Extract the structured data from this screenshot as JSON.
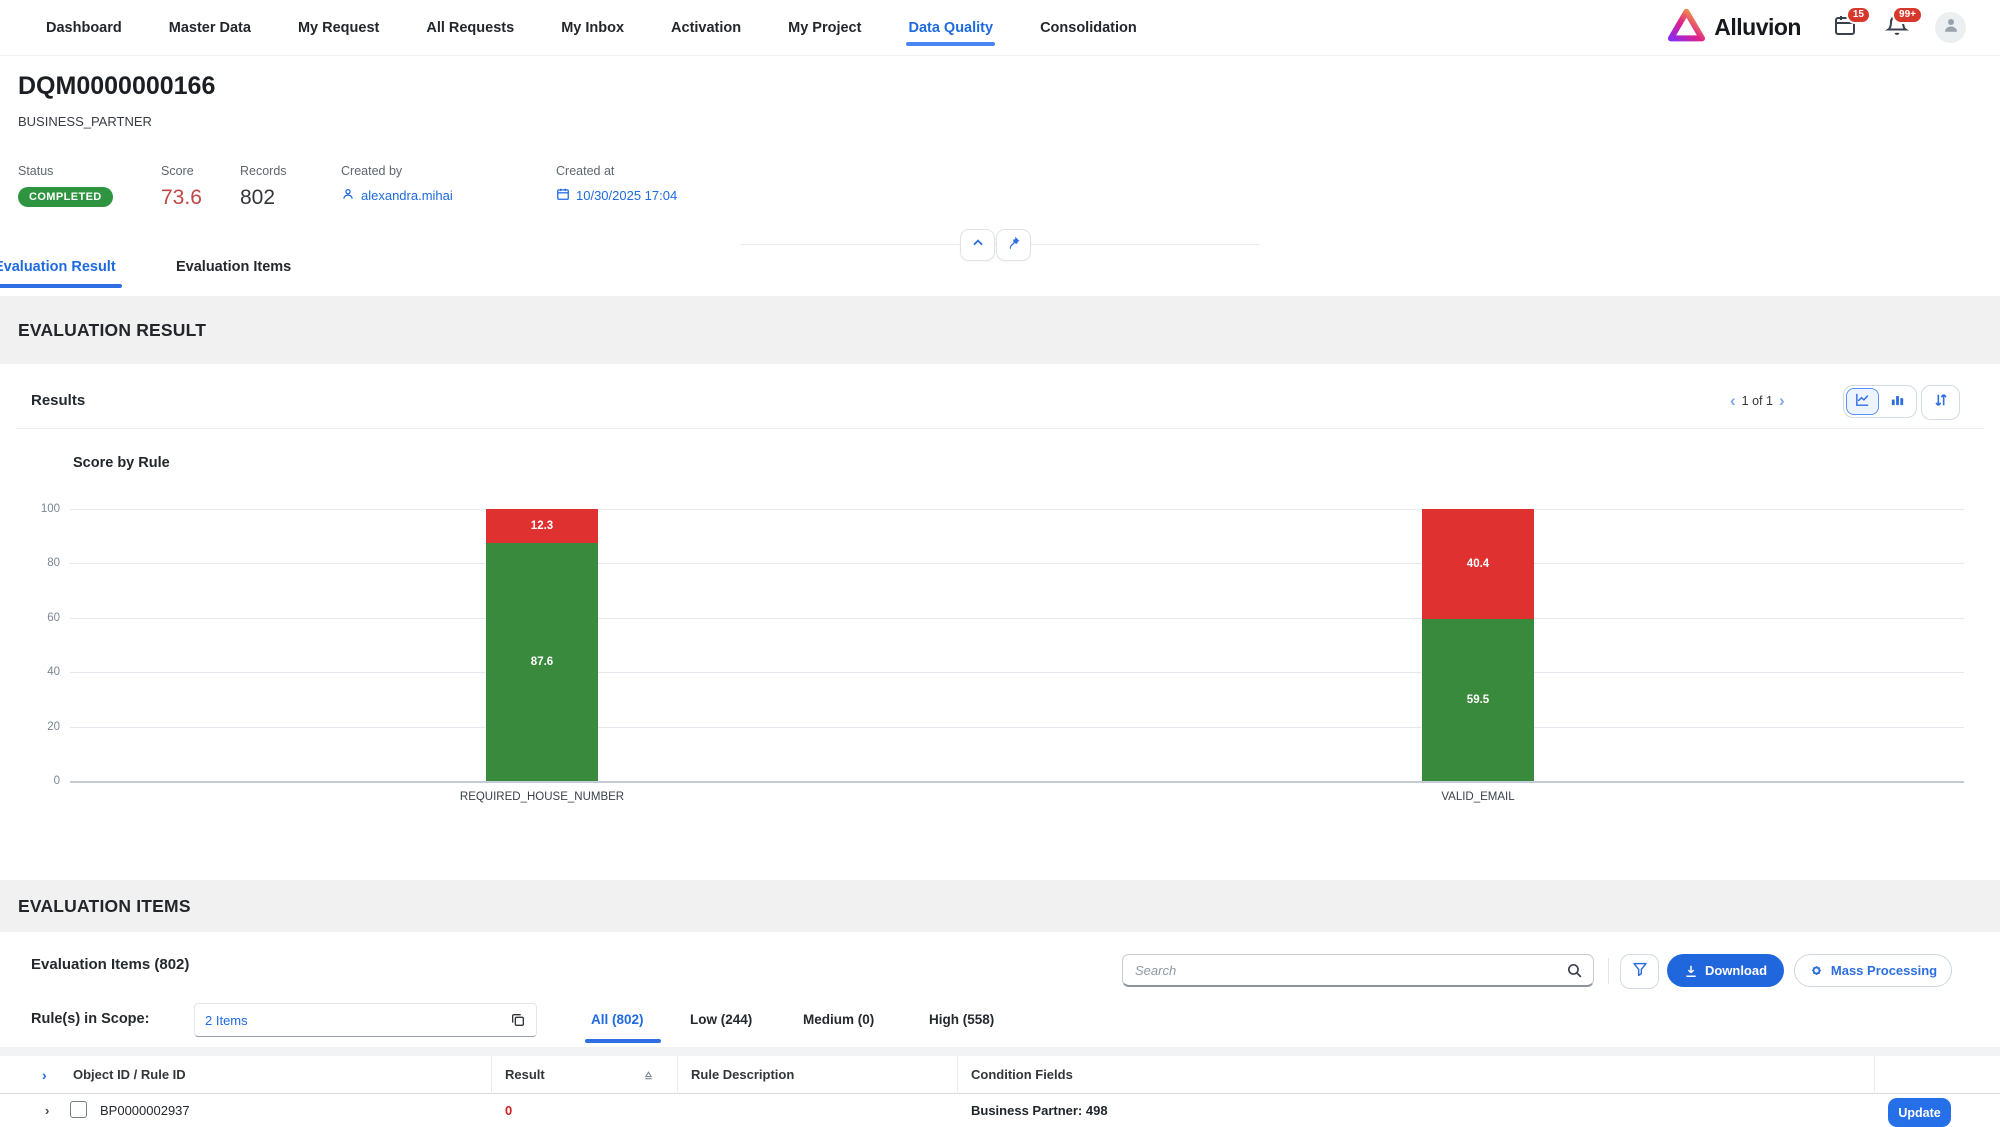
{
  "nav": {
    "items": [
      {
        "label": "Dashboard",
        "active": false
      },
      {
        "label": "Master Data",
        "active": false
      },
      {
        "label": "My Request",
        "active": false
      },
      {
        "label": "All Requests",
        "active": false
      },
      {
        "label": "My Inbox",
        "active": false
      },
      {
        "label": "Activation",
        "active": false
      },
      {
        "label": "My Project",
        "active": false
      },
      {
        "label": "Data Quality",
        "active": true
      },
      {
        "label": "Consolidation",
        "active": false
      }
    ],
    "logo_text": "Alluvion",
    "badges": {
      "calendar": "15",
      "bell": "99+"
    }
  },
  "header": {
    "title": "DQM0000000166",
    "subtitle": "BUSINESS_PARTNER",
    "facets": {
      "status": {
        "label": "Status",
        "value": "COMPLETED"
      },
      "score": {
        "label": "Score",
        "value": "73.6"
      },
      "records": {
        "label": "Records",
        "value": "802"
      },
      "created_by": {
        "label": "Created by",
        "value": "alexandra.mihai"
      },
      "created_at": {
        "label": "Created at",
        "value": "10/30/2025 17:04"
      }
    }
  },
  "tabs": [
    {
      "label": "Evaluation Result",
      "active": true
    },
    {
      "label": "Evaluation Items",
      "active": false
    }
  ],
  "sections": {
    "result_title": "EVALUATION RESULT",
    "items_title": "EVALUATION ITEMS"
  },
  "results_panel": {
    "title": "Results",
    "pagination": "1 of 1"
  },
  "chart_data": {
    "type": "bar",
    "stacked": true,
    "title": "Score by Rule",
    "categories": [
      "REQUIRED_HOUSE_NUMBER",
      "VALID_EMAIL"
    ],
    "series": [
      {
        "name": "passed",
        "color": "#3a8a3d",
        "values": [
          87.6,
          59.5
        ]
      },
      {
        "name": "failed",
        "color": "#e03131",
        "values": [
          12.3,
          40.4
        ]
      }
    ],
    "ylim": [
      0,
      100
    ],
    "yticks": [
      0,
      20,
      40,
      60,
      80,
      100
    ],
    "grid": true,
    "legend": "none",
    "xlabel": "",
    "ylabel": ""
  },
  "items_panel": {
    "title": "Evaluation Items (802)",
    "search_placeholder": "Search",
    "download_label": "Download",
    "mass_processing_label": "Mass Processing",
    "rules_scope_label": "Rule(s) in Scope:",
    "rules_scope_value": "2 Items",
    "filter_tabs": [
      {
        "label": "All (802)",
        "active": true
      },
      {
        "label": "Low (244)",
        "active": false
      },
      {
        "label": "Medium (0)",
        "active": false
      },
      {
        "label": "High (558)",
        "active": false
      }
    ],
    "table": {
      "columns": [
        "Object ID / Rule ID",
        "Result",
        "Rule Description",
        "Condition Fields"
      ],
      "rows": [
        {
          "id": "BP0000002937",
          "result": "0",
          "rule_description": "",
          "condition_fields": "Business Partner: 498",
          "action": "Update"
        }
      ]
    }
  },
  "colors": {
    "accent_blue": "#1e6ae1",
    "primary_button": "#2066dd",
    "status_green": "#2e9440",
    "score_red": "#c04545",
    "chart_green": "#3a8a3d",
    "chart_red": "#e03131",
    "notification_red": "#d6382c",
    "band_gray": "#f1f1f1"
  }
}
